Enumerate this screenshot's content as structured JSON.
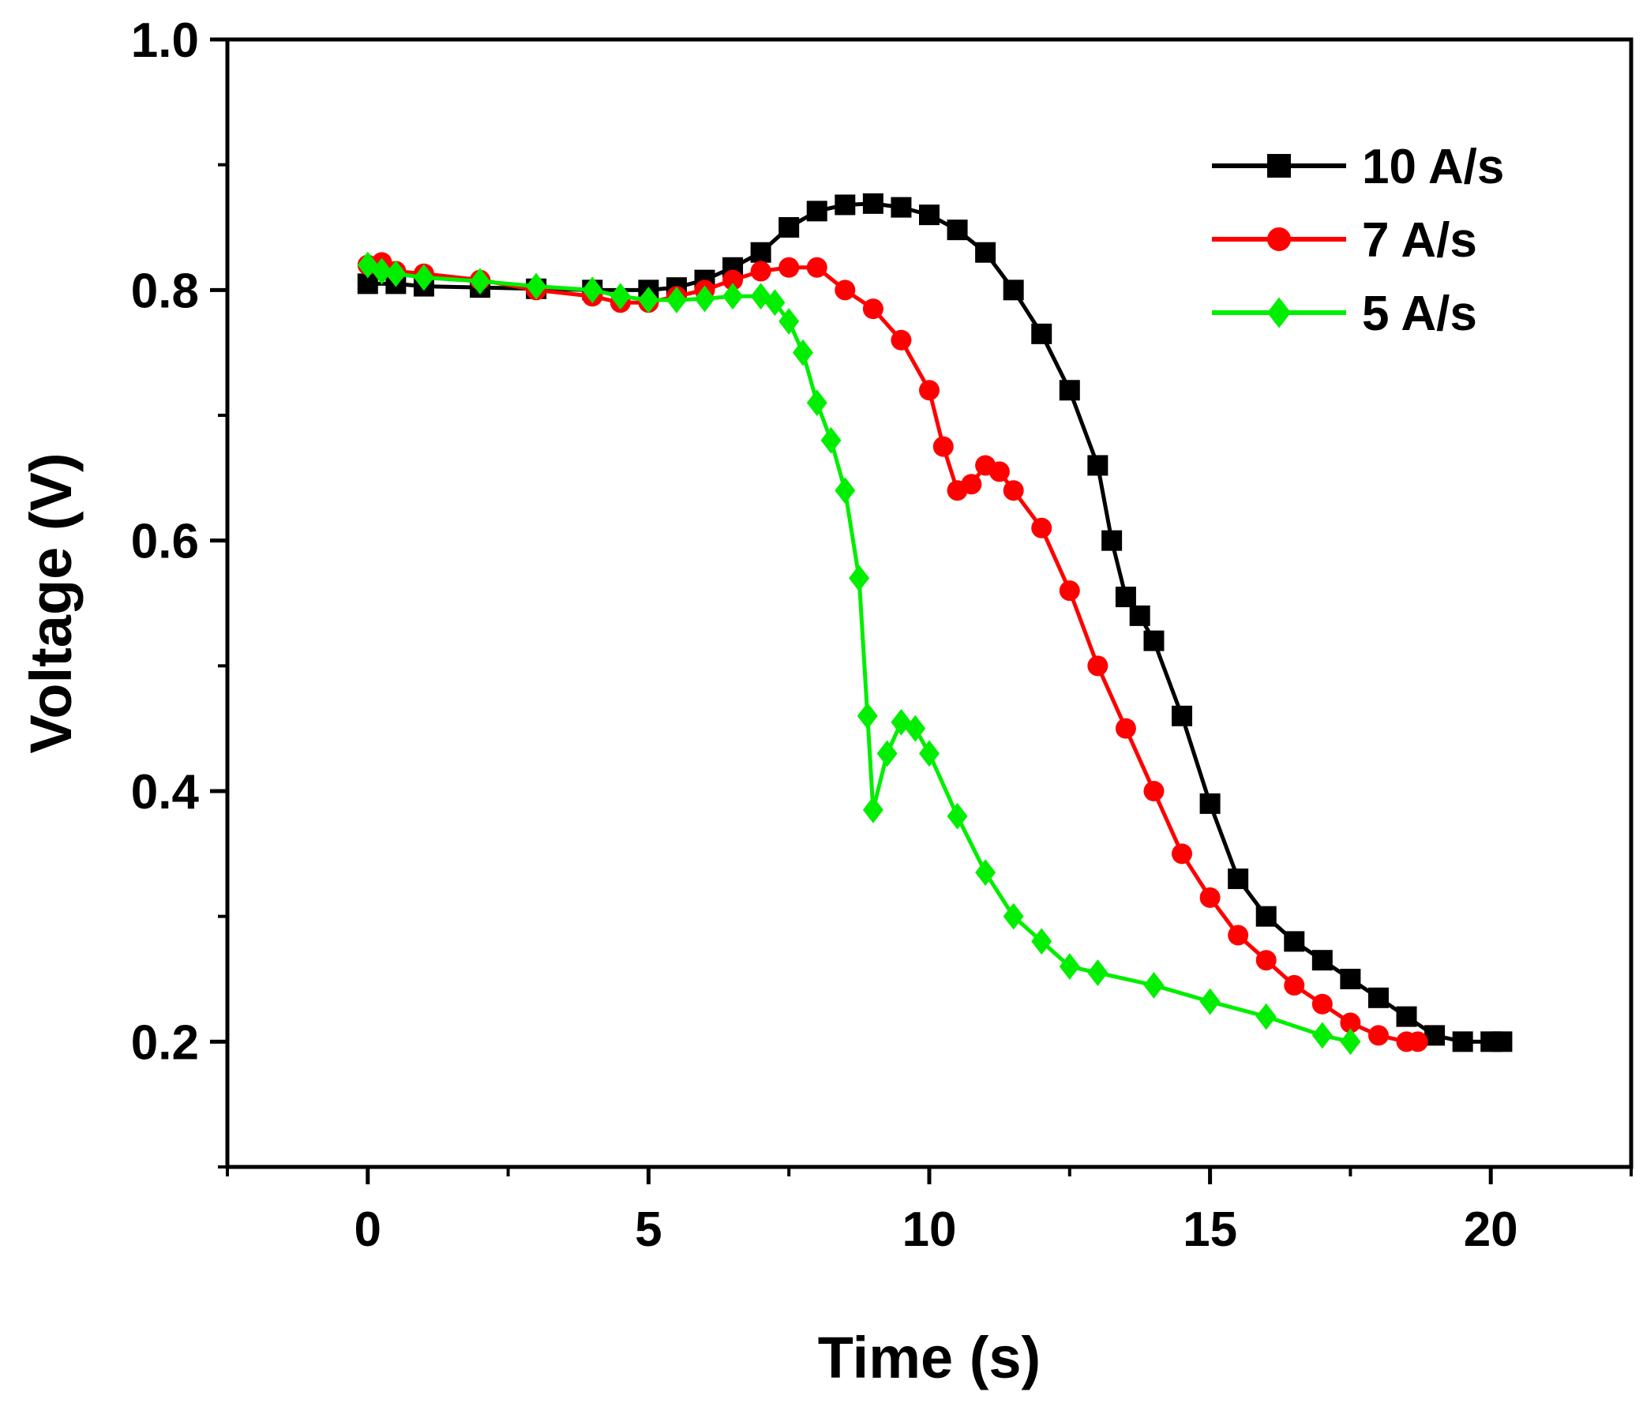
{
  "chart_data": {
    "type": "line",
    "title": "",
    "xlabel": "Time (s)",
    "ylabel": "Voltage (V)",
    "xlim": [
      -2.5,
      22.5
    ],
    "ylim": [
      0.1,
      1.0
    ],
    "x_ticks": [
      0,
      5,
      10,
      15,
      20
    ],
    "x_tick_labels": [
      "0",
      "5",
      "10",
      "15",
      "20"
    ],
    "y_ticks": [
      0.2,
      0.4,
      0.6,
      0.8,
      1.0
    ],
    "y_tick_labels": [
      "0.2",
      "0.4",
      "0.6",
      "0.8",
      "1.0"
    ],
    "grid": false,
    "legend_position": "top-right",
    "series": [
      {
        "name": "10 A/s",
        "color": "#000000",
        "marker": "square",
        "x": [
          0,
          0.5,
          1,
          2,
          3,
          4,
          5,
          5.5,
          6,
          6.5,
          7,
          7.5,
          8,
          8.5,
          9,
          9.5,
          10,
          10.5,
          11,
          11.5,
          12,
          12.5,
          13,
          13.25,
          13.5,
          13.75,
          14,
          14.5,
          15,
          15.5,
          16,
          16.5,
          17,
          17.5,
          18,
          18.5,
          19,
          19.5,
          20,
          20.2
        ],
        "y": [
          0.805,
          0.805,
          0.803,
          0.802,
          0.801,
          0.8,
          0.8,
          0.802,
          0.808,
          0.818,
          0.83,
          0.85,
          0.863,
          0.868,
          0.869,
          0.866,
          0.86,
          0.848,
          0.83,
          0.8,
          0.765,
          0.72,
          0.66,
          0.6,
          0.555,
          0.54,
          0.52,
          0.46,
          0.39,
          0.33,
          0.3,
          0.28,
          0.265,
          0.25,
          0.235,
          0.22,
          0.205,
          0.2,
          0.2,
          0.2
        ]
      },
      {
        "name": "7 A/s",
        "color": "#ff0000",
        "marker": "circle",
        "x": [
          0,
          0.25,
          0.5,
          1,
          2,
          3,
          4,
          4.5,
          5,
          5.5,
          6,
          6.5,
          7,
          7.5,
          8,
          8.5,
          9,
          9.5,
          10,
          10.25,
          10.5,
          10.75,
          11,
          11.25,
          11.5,
          12,
          12.5,
          13,
          13.5,
          14,
          14.5,
          15,
          15.5,
          16,
          16.5,
          17,
          17.5,
          18,
          18.5,
          18.7
        ],
        "y": [
          0.82,
          0.822,
          0.815,
          0.813,
          0.808,
          0.8,
          0.795,
          0.79,
          0.79,
          0.795,
          0.8,
          0.808,
          0.815,
          0.818,
          0.818,
          0.8,
          0.785,
          0.76,
          0.72,
          0.675,
          0.64,
          0.645,
          0.66,
          0.655,
          0.64,
          0.61,
          0.56,
          0.5,
          0.45,
          0.4,
          0.35,
          0.315,
          0.285,
          0.265,
          0.245,
          0.23,
          0.215,
          0.205,
          0.2,
          0.2
        ]
      },
      {
        "name": "5 A/s",
        "color": "#00ee00",
        "marker": "diamond",
        "x": [
          0,
          0.25,
          0.5,
          1,
          2,
          3,
          4,
          4.5,
          5,
          5.5,
          6,
          6.5,
          7,
          7.25,
          7.5,
          7.75,
          8,
          8.25,
          8.5,
          8.75,
          8.9,
          9.0,
          9.25,
          9.5,
          9.75,
          10,
          10.5,
          11,
          11.5,
          12,
          12.5,
          13,
          14,
          15,
          16,
          17,
          17.5
        ],
        "y": [
          0.82,
          0.815,
          0.813,
          0.81,
          0.807,
          0.803,
          0.8,
          0.795,
          0.792,
          0.792,
          0.793,
          0.795,
          0.795,
          0.79,
          0.775,
          0.75,
          0.71,
          0.68,
          0.64,
          0.57,
          0.46,
          0.385,
          0.43,
          0.455,
          0.45,
          0.43,
          0.38,
          0.335,
          0.3,
          0.28,
          0.26,
          0.255,
          0.245,
          0.232,
          0.22,
          0.205,
          0.2
        ]
      }
    ]
  }
}
